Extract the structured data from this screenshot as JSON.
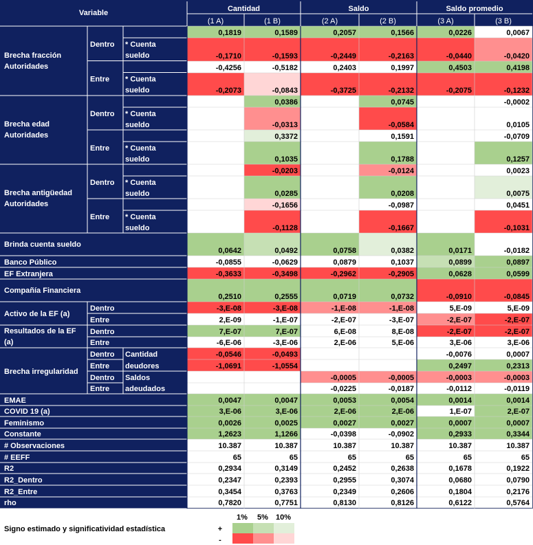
{
  "header": {
    "variable": "Variable",
    "groups": [
      "Cantidad",
      "Saldo",
      "Saldo promedio"
    ],
    "columns": [
      "(1 A)",
      "(1 B)",
      "(2 A)",
      "(2 B)",
      "(3 A)",
      "(3 B)"
    ]
  },
  "labels": {
    "brecha_fraccion": "Brecha fracción Autoridades",
    "brecha_edad": "Brecha edad Autoridades",
    "brecha_antiguedad": "Brecha antigüedad Autoridades",
    "dentro": "Dentro",
    "entre": "Entre",
    "cuenta_sueldo": "* Cuenta sueldo",
    "brinda": "Brinda cuenta sueldo",
    "banco": "Banco Público",
    "ef_ext": "EF Extranjera",
    "compania": "Compañía Financiera",
    "activo": "Activo de la EF (a)",
    "resultados": "Resultados de la EF (a)",
    "irregularidad": "Brecha irregularidad",
    "cantidad_deudores": "Cantidad deudores",
    "saldos_adeudados": "Saldos adeudados",
    "emae": "EMAE",
    "covid": "COVID 19 (a)",
    "feminismo": "Feminismo",
    "constante": "Constante",
    "obs": "# Observaciones",
    "eeff": "# EEFF",
    "r2": "R2",
    "r2_dentro": "R2_Dentro",
    "r2_entre": "R2_Entre",
    "rho": "rho"
  },
  "colors": {
    "navy": "#10215f",
    "pos1": "#a9d08e",
    "pos5": "#c6e0b4",
    "pos10": "#e2efda",
    "neg1": "#ff4b4b",
    "neg5": "#ff8f8f",
    "neg10": "#ffd6d6",
    "none": "#ffffff"
  },
  "rows": [
    {
      "values": [
        "0,1819",
        "0,1589",
        "0,2057",
        "0,1566",
        "0,0226",
        "0,0067"
      ],
      "sig": [
        "p1",
        "p1",
        "p1",
        "p1",
        "p1",
        "n"
      ]
    },
    {
      "values": [
        "-0,1710",
        "-0,1593",
        "-0,2449",
        "-0,2163",
        "-0,0440",
        "-0,0420"
      ],
      "sig": [
        "n1",
        "n1",
        "n1",
        "n1",
        "n1",
        "n5"
      ]
    },
    {
      "values": [
        "-0,4256",
        "-0,5182",
        "0,2403",
        "0,1997",
        "0,4503",
        "0,4198"
      ],
      "sig": [
        "n",
        "n",
        "n",
        "n",
        "p1",
        "p1"
      ]
    },
    {
      "values": [
        "-0,2073",
        "-0,0843",
        "-0,3725",
        "-0,2132",
        "-0,2075",
        "-0,1232"
      ],
      "sig": [
        "n1",
        "n10",
        "n1",
        "n1",
        "n1",
        "n1"
      ]
    },
    {
      "values": [
        "",
        "0,0386",
        "",
        "0,0745",
        "",
        "-0,0002"
      ],
      "sig": [
        "n",
        "p1",
        "n",
        "p1",
        "n",
        "n"
      ]
    },
    {
      "values": [
        "",
        "-0,0313",
        "",
        "-0,0584",
        "",
        "0,0105"
      ],
      "sig": [
        "n",
        "n5",
        "n",
        "n1",
        "n",
        "n"
      ]
    },
    {
      "values": [
        "",
        "0,3372",
        "",
        "0,1591",
        "",
        "-0,0709"
      ],
      "sig": [
        "n",
        "p10",
        "n",
        "n",
        "n",
        "n"
      ]
    },
    {
      "values": [
        "",
        "0,1035",
        "",
        "0,1788",
        "",
        "0,1257"
      ],
      "sig": [
        "n",
        "p1",
        "n",
        "p1",
        "n",
        "p1"
      ]
    },
    {
      "values": [
        "",
        "-0,0203",
        "",
        "-0,0124",
        "",
        "0,0023"
      ],
      "sig": [
        "n",
        "n1",
        "n",
        "n5",
        "n",
        "n"
      ]
    },
    {
      "values": [
        "",
        "0,0285",
        "",
        "0,0208",
        "",
        "0,0075"
      ],
      "sig": [
        "n",
        "p1",
        "n",
        "p1",
        "n",
        "p10"
      ]
    },
    {
      "values": [
        "",
        "-0,1656",
        "",
        "-0,0987",
        "",
        "0,0451"
      ],
      "sig": [
        "n",
        "n10",
        "n",
        "n",
        "n",
        "n"
      ]
    },
    {
      "values": [
        "",
        "-0,1128",
        "",
        "-0,1667",
        "",
        "-0,1031"
      ],
      "sig": [
        "n",
        "n1",
        "n",
        "n1",
        "n",
        "n1"
      ]
    },
    {
      "values": [
        "0,0642",
        "0,0492",
        "0,0758",
        "0,0382",
        "0,0171",
        "-0,0182"
      ],
      "sig": [
        "p1",
        "p5",
        "p1",
        "p10",
        "p1",
        "n"
      ]
    },
    {
      "values": [
        "-0,0855",
        "-0,0629",
        "0,0879",
        "0,1037",
        "0,0899",
        "0,0897"
      ],
      "sig": [
        "n",
        "n",
        "n",
        "n",
        "p5",
        "p1"
      ]
    },
    {
      "values": [
        "-0,3633",
        "-0,3498",
        "-0,2962",
        "-0,2905",
        "0,0628",
        "0,0599"
      ],
      "sig": [
        "n1",
        "n1",
        "n1",
        "n1",
        "p1",
        "p1"
      ]
    },
    {
      "values": [
        "0,2510",
        "0,2555",
        "0,0719",
        "0,0732",
        "-0,0910",
        "-0,0845"
      ],
      "sig": [
        "p1",
        "p1",
        "p1",
        "p1",
        "n1",
        "n1"
      ]
    },
    {
      "values": [
        "-3,E-08",
        "-3,E-08",
        "-1,E-08",
        "-1,E-08",
        "5,E-09",
        "5,E-09"
      ],
      "sig": [
        "n1",
        "n1",
        "n5",
        "n5",
        "n",
        "n"
      ]
    },
    {
      "values": [
        "2,E-09",
        "-1,E-07",
        "-2,E-07",
        "-3,E-07",
        "-2,E-07",
        "-2,E-07"
      ],
      "sig": [
        "n",
        "n",
        "n",
        "n",
        "n5",
        "n1"
      ]
    },
    {
      "values": [
        "7,E-07",
        "7,E-07",
        "6,E-08",
        "8,E-08",
        "-2,E-07",
        "-2,E-07"
      ],
      "sig": [
        "p1",
        "p1",
        "n",
        "n",
        "n1",
        "n1"
      ]
    },
    {
      "values": [
        "-6,E-06",
        "-3,E-06",
        "2,E-06",
        "5,E-06",
        "3,E-06",
        "3,E-06"
      ],
      "sig": [
        "n",
        "n",
        "n",
        "n",
        "n",
        "n"
      ]
    },
    {
      "values": [
        "-0,0546",
        "-0,0493",
        "",
        "",
        "-0,0076",
        "0,0007"
      ],
      "sig": [
        "n1",
        "n1",
        "n",
        "n",
        "n",
        "n"
      ]
    },
    {
      "values": [
        "-1,0691",
        "-1,0554",
        "",
        "",
        "0,2497",
        "0,2313"
      ],
      "sig": [
        "n1",
        "n1",
        "n",
        "n",
        "p1",
        "p1"
      ]
    },
    {
      "values": [
        "",
        "",
        "-0,0005",
        "-0,0005",
        "-0,0003",
        "-0,0003"
      ],
      "sig": [
        "n",
        "n",
        "n5",
        "n5",
        "n5",
        "n5"
      ]
    },
    {
      "values": [
        "",
        "",
        "-0,0225",
        "-0,0187",
        "-0,0112",
        "-0,0119"
      ],
      "sig": [
        "n",
        "n",
        "n",
        "n",
        "n",
        "n"
      ]
    },
    {
      "values": [
        "0,0047",
        "0,0047",
        "0,0053",
        "0,0054",
        "0,0014",
        "0,0014"
      ],
      "sig": [
        "p1",
        "p1",
        "p1",
        "p1",
        "p1",
        "p1"
      ]
    },
    {
      "values": [
        "3,E-06",
        "3,E-06",
        "2,E-06",
        "2,E-06",
        "1,E-07",
        "2,E-07"
      ],
      "sig": [
        "p1",
        "p1",
        "p1",
        "p1",
        "n",
        "p1"
      ]
    },
    {
      "values": [
        "0,0026",
        "0,0025",
        "0,0027",
        "0,0027",
        "0,0007",
        "0,0007"
      ],
      "sig": [
        "p1",
        "p1",
        "p1",
        "p1",
        "p1",
        "p1"
      ]
    },
    {
      "values": [
        "1,2623",
        "1,1266",
        "-0,0398",
        "-0,0902",
        "0,2933",
        "0,3344"
      ],
      "sig": [
        "p1",
        "p1",
        "n",
        "n",
        "p1",
        "p1"
      ]
    },
    {
      "values": [
        "10.387",
        "10.387",
        "10.387",
        "10.387",
        "10.387",
        "10.387"
      ],
      "sig": [
        "n",
        "n",
        "n",
        "n",
        "n",
        "n"
      ]
    },
    {
      "values": [
        "65",
        "65",
        "65",
        "65",
        "65",
        "65"
      ],
      "sig": [
        "n",
        "n",
        "n",
        "n",
        "n",
        "n"
      ]
    },
    {
      "values": [
        "0,2934",
        "0,3149",
        "0,2452",
        "0,2638",
        "0,1678",
        "0,1922"
      ],
      "sig": [
        "n",
        "n",
        "n",
        "n",
        "n",
        "n"
      ]
    },
    {
      "values": [
        "0,2347",
        "0,2393",
        "0,2955",
        "0,3074",
        "0,0680",
        "0,0790"
      ],
      "sig": [
        "n",
        "n",
        "n",
        "n",
        "n",
        "n"
      ]
    },
    {
      "values": [
        "0,3454",
        "0,3763",
        "0,2349",
        "0,2606",
        "0,1804",
        "0,2176"
      ],
      "sig": [
        "n",
        "n",
        "n",
        "n",
        "n",
        "n"
      ]
    },
    {
      "values": [
        "0,7820",
        "0,7751",
        "0,8130",
        "0,8126",
        "0,6122",
        "0,5764"
      ],
      "sig": [
        "n",
        "n",
        "n",
        "n",
        "n",
        "n"
      ]
    }
  ],
  "legend": {
    "title": "Signo estimado y significatividad estadística",
    "levels": [
      "1%",
      "5%",
      "10%"
    ],
    "plus": "+",
    "minus": "-"
  }
}
